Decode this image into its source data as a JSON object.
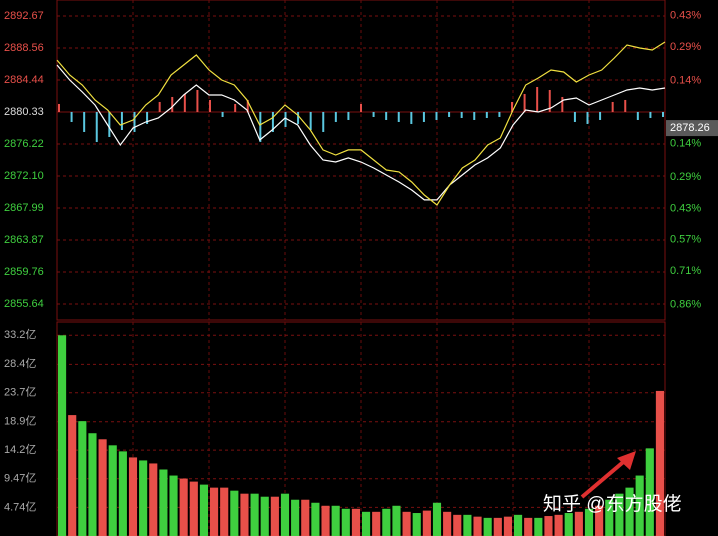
{
  "chart_data": [
    {
      "type": "line",
      "ylim": [
        2853.58,
        2894.73
      ],
      "yticks": [
        2892.67,
        2888.56,
        2884.44,
        2880.33,
        2876.22,
        {
          "value": 2872.1,
          "label": "2872.10"
        },
        2867.99,
        2863.87,
        2859.76,
        2855.64
      ],
      "y2lim": [
        -0.928,
        0.5
      ],
      "y2ticks": [
        {
          "value": 0.43,
          "label": "0.43%"
        },
        {
          "value": 0.29,
          "label": "0.29%"
        },
        {
          "value": 0.14,
          "label": "0.14%"
        },
        {
          "value": -0.14,
          "label": "0.14%"
        },
        {
          "value": -0.29,
          "label": "0.29%"
        },
        {
          "value": -0.43,
          "label": "0.43%"
        },
        {
          "value": -0.57,
          "label": "0.57%"
        },
        {
          "value": -0.71,
          "label": "0.71%"
        },
        {
          "value": -0.86,
          "label": "0.86%"
        }
      ],
      "prev_close": 2880.33,
      "last_price": 2878.26,
      "up_color": "#e8504a",
      "down_color": "#3fcf3f",
      "series": [
        {
          "color": "#ffffff",
          "values": [
            2886.37,
            2884.44,
            2882.9,
            2881.23,
            2878.66,
            2876.09,
            2878.27,
            2879.04,
            2879.56,
            2880.84,
            2882.52,
            2883.8,
            2882.52,
            2882.52,
            2881.87,
            2880.59,
            2876.73,
            2878.02,
            2879.56,
            2878.66,
            2876.09,
            2874.16,
            2873.9,
            2874.42,
            2873.9,
            2873.13,
            2872.23,
            2871.33,
            2870.3,
            2869.02,
            2869.02,
            2870.95,
            2872.23,
            2873.52,
            2874.42,
            2875.7,
            2878.66,
            2880.59,
            2880.33,
            2880.84,
            2881.87,
            2882.13,
            2881.23,
            2881.87,
            2882.52,
            2883.16,
            2883.41,
            2883.16,
            2883.41
          ]
        },
        {
          "color": "#f0e040",
          "values": [
            2887.0,
            2885.09,
            2883.8,
            2881.87,
            2880.59,
            2878.66,
            2879.3,
            2881.23,
            2882.52,
            2885.09,
            2886.37,
            2887.66,
            2885.73,
            2884.44,
            2883.8,
            2881.87,
            2878.66,
            2879.56,
            2881.23,
            2879.94,
            2878.02,
            2875.45,
            2874.8,
            2875.45,
            2875.45,
            2874.16,
            2872.87,
            2872.62,
            2871.33,
            2869.66,
            2868.37,
            2870.95,
            2873.13,
            2874.16,
            2876.09,
            2876.99,
            2880.59,
            2883.8,
            2884.7,
            2885.73,
            2885.47,
            2884.19,
            2885.09,
            2885.73,
            2887.27,
            2888.94,
            2888.56,
            2888.3,
            2889.33
          ]
        }
      ],
      "breadth": {
        "lim": [
          -30,
          30
        ],
        "up_color": "#e8504a",
        "down_color": "#5bc8e0",
        "values": [
          8,
          -10,
          -20,
          -30,
          -25,
          -18,
          -20,
          -12,
          10,
          15,
          18,
          22,
          12,
          -5,
          8,
          12,
          -30,
          -20,
          -15,
          -12,
          -18,
          -20,
          -10,
          -8,
          8,
          -5,
          -8,
          -10,
          -12,
          -10,
          -8,
          -5,
          -6,
          -8,
          -6,
          -5,
          10,
          18,
          25,
          22,
          15,
          -10,
          -12,
          -8,
          10,
          12,
          -8,
          -6,
          -5
        ]
      },
      "annotation": "知乎 @东方股佬"
    },
    {
      "type": "bar",
      "ylim": [
        0,
        35.4
      ],
      "yticks": [
        {
          "value": 33.2,
          "label": "33.2亿"
        },
        {
          "value": 28.4,
          "label": "28.4亿"
        },
        {
          "value": 23.7,
          "label": "23.7亿"
        },
        {
          "value": 18.9,
          "label": "18.9亿"
        },
        {
          "value": 14.2,
          "label": "14.2亿"
        },
        {
          "value": 9.47,
          "label": "9.47亿"
        },
        {
          "value": 4.74,
          "label": "4.74亿"
        }
      ],
      "values": [
        33.2,
        20,
        19,
        17,
        16,
        15,
        14,
        13,
        12.5,
        12,
        11,
        10,
        9.5,
        9,
        8.5,
        8,
        8,
        7.5,
        7,
        7,
        6.5,
        6.5,
        7,
        6,
        6,
        5.5,
        5,
        5,
        4.5,
        4.5,
        4,
        4,
        4.5,
        5,
        4,
        3.8,
        4.2,
        5.5,
        4,
        3.5,
        3.5,
        3.2,
        3,
        3,
        3.2,
        3.5,
        3,
        3,
        3.3,
        3.5,
        3.8,
        4,
        4.5,
        5,
        6,
        7,
        8,
        10,
        14.5,
        24
      ],
      "colors": [
        "#3fcf3f",
        "#e8504a",
        "#3fcf3f",
        "#3fcf3f",
        "#e8504a",
        "#3fcf3f",
        "#3fcf3f",
        "#e8504a",
        "#3fcf3f",
        "#e8504a",
        "#3fcf3f",
        "#3fcf3f",
        "#e8504a",
        "#e8504a",
        "#3fcf3f",
        "#e8504a",
        "#e8504a",
        "#3fcf3f",
        "#e8504a",
        "#3fcf3f",
        "#3fcf3f",
        "#e8504a",
        "#3fcf3f",
        "#3fcf3f",
        "#e8504a",
        "#3fcf3f",
        "#e8504a",
        "#3fcf3f",
        "#3fcf3f",
        "#e8504a",
        "#3fcf3f",
        "#e8504a",
        "#3fcf3f",
        "#3fcf3f",
        "#e8504a",
        "#3fcf3f",
        "#e8504a",
        "#3fcf3f",
        "#e8504a",
        "#e8504a",
        "#3fcf3f",
        "#e8504a",
        "#3fcf3f",
        "#e8504a",
        "#e8504a",
        "#3fcf3f",
        "#e8504a",
        "#3fcf3f",
        "#e8504a",
        "#e8504a",
        "#3fcf3f",
        "#e8504a",
        "#3fcf3f",
        "#e8504a",
        "#3fcf3f",
        "#3fcf3f",
        "#3fcf3f",
        "#3fcf3f",
        "#3fcf3f",
        "#e8504a"
      ]
    }
  ]
}
